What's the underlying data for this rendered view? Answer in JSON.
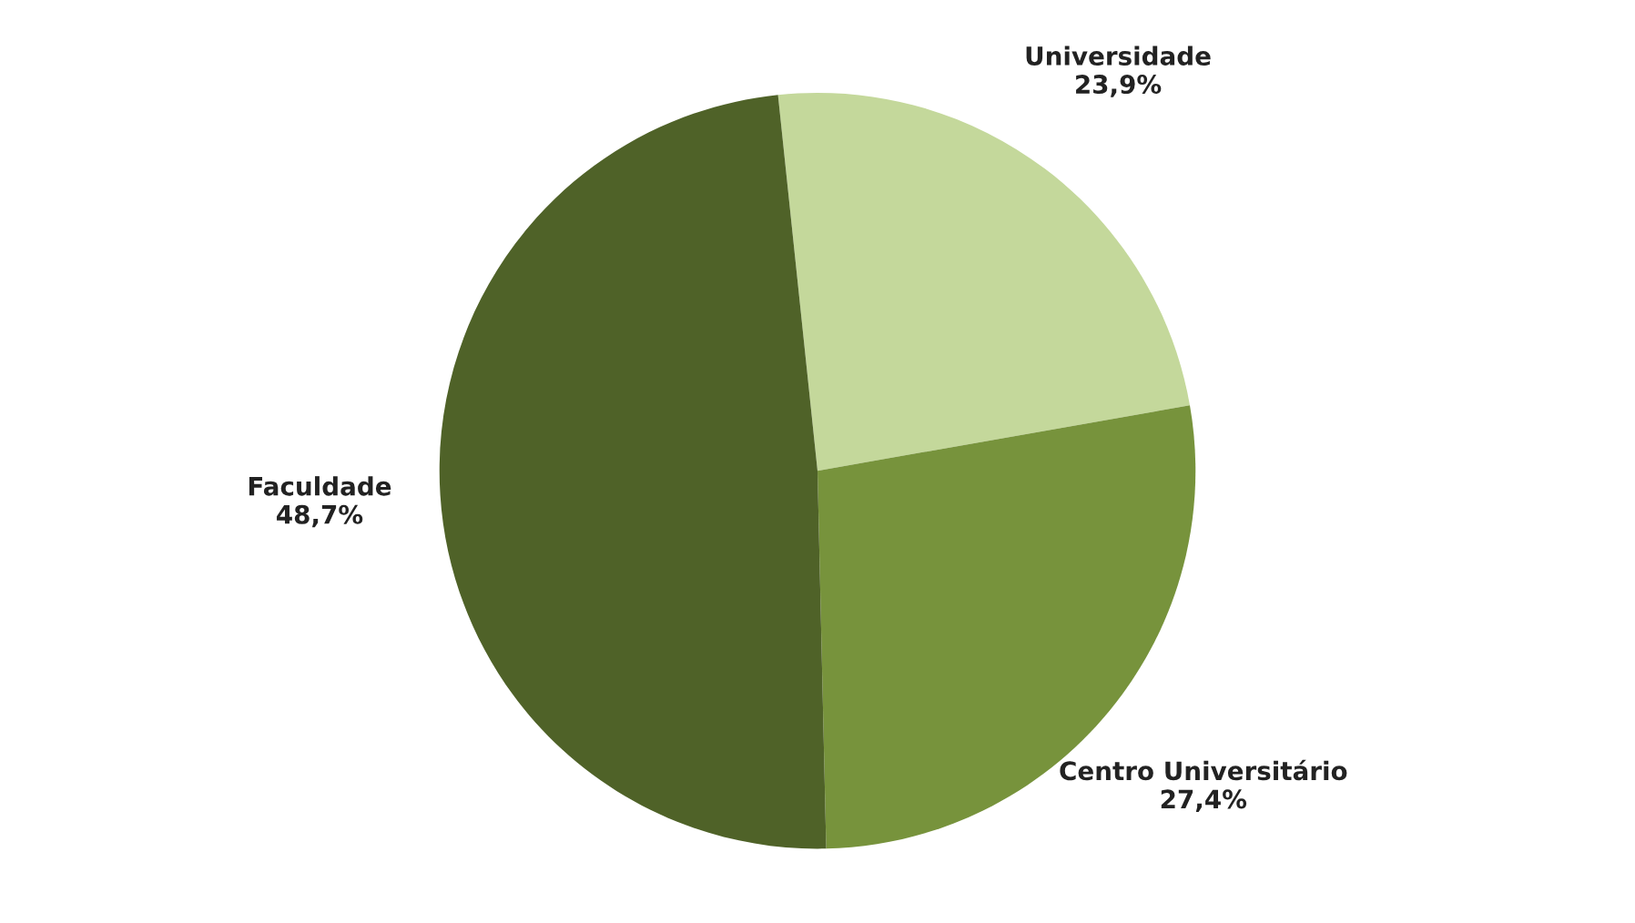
{
  "chart_data": {
    "type": "pie",
    "categories": [
      "Universidade",
      "Centro Universitário",
      "Faculdade"
    ],
    "values": [
      23.9,
      27.4,
      48.7
    ],
    "value_labels": [
      "23,9%",
      "27,4%",
      "48,7%"
    ],
    "colors": [
      "#c4d89b",
      "#77933c",
      "#4f6228"
    ]
  }
}
